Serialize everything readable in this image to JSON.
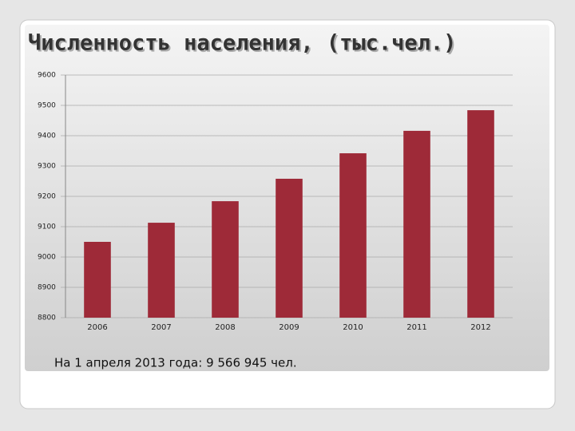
{
  "chart_data": {
    "type": "bar",
    "title": "Численность населения, (тыс.чел.)",
    "categories": [
      "2006",
      "2007",
      "2008",
      "2009",
      "2010",
      "2011",
      "2012"
    ],
    "values": [
      9050,
      9113,
      9184,
      9258,
      9342,
      9416,
      9484
    ],
    "color": "#9e2a38",
    "ylim": [
      8800,
      9600
    ],
    "yticks": [
      8800,
      8900,
      9000,
      9100,
      9200,
      9300,
      9400,
      9500,
      9600
    ],
    "grid": true,
    "annotation": "На 1 апреля 2013 года: 9 566 945 чел."
  }
}
